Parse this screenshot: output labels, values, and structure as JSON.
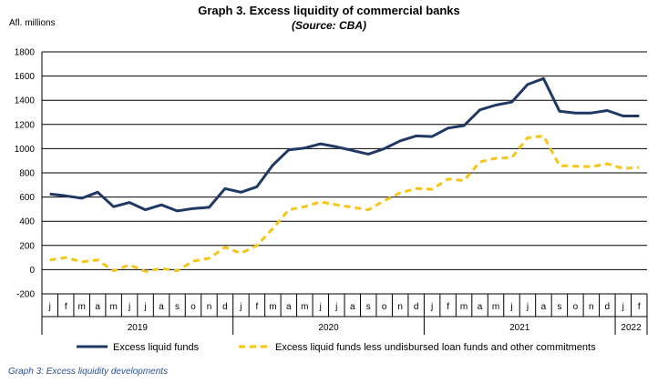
{
  "title": "Graph 3. Excess liquidity of commercial banks",
  "subtitle": "(Source: CBA)",
  "unit_label": "Afl. millions",
  "caption": "Graph 3: Excess liquidity developments",
  "colors": {
    "series1": "#1f3864",
    "series2": "#f5c518",
    "grid": "#000000",
    "axis": "#000000"
  },
  "chart_data": {
    "type": "line",
    "ylim": [
      -200,
      1800
    ],
    "yticks": [
      -200,
      0,
      200,
      400,
      600,
      800,
      1000,
      1200,
      1400,
      1600,
      1800
    ],
    "grid": true,
    "legend_position": "bottom",
    "month_labels": [
      "j",
      "f",
      "m",
      "a",
      "m",
      "j",
      "j",
      "a",
      "s",
      "o",
      "n",
      "d",
      "j",
      "f",
      "m",
      "a",
      "m",
      "j",
      "j",
      "a",
      "s",
      "o",
      "n",
      "d",
      "j",
      "f",
      "m",
      "a",
      "m",
      "j",
      "j",
      "a",
      "s",
      "o",
      "n",
      "d",
      "j",
      "f"
    ],
    "years": [
      {
        "label": "2019",
        "months": 12
      },
      {
        "label": "2020",
        "months": 12
      },
      {
        "label": "2021",
        "months": 12
      },
      {
        "label": "2022",
        "months": 2
      }
    ],
    "series": [
      {
        "name": "Excess liquid funds",
        "style": "solid",
        "values": [
          625,
          610,
          590,
          640,
          520,
          555,
          495,
          535,
          485,
          505,
          515,
          670,
          640,
          685,
          865,
          990,
          1005,
          1040,
          1015,
          985,
          955,
          1000,
          1065,
          1105,
          1100,
          1170,
          1190,
          1320,
          1360,
          1385,
          1530,
          1580,
          1310,
          1295,
          1295,
          1315,
          1270,
          1270
        ]
      },
      {
        "name": "Excess liquid funds less undisbursed loan funds and other commitments",
        "style": "dashed",
        "values": [
          80,
          100,
          65,
          80,
          -10,
          40,
          -15,
          10,
          -10,
          70,
          95,
          185,
          135,
          200,
          340,
          495,
          520,
          560,
          535,
          515,
          495,
          570,
          635,
          670,
          665,
          750,
          735,
          890,
          920,
          925,
          1090,
          1105,
          860,
          855,
          850,
          875,
          835,
          845
        ]
      }
    ]
  }
}
